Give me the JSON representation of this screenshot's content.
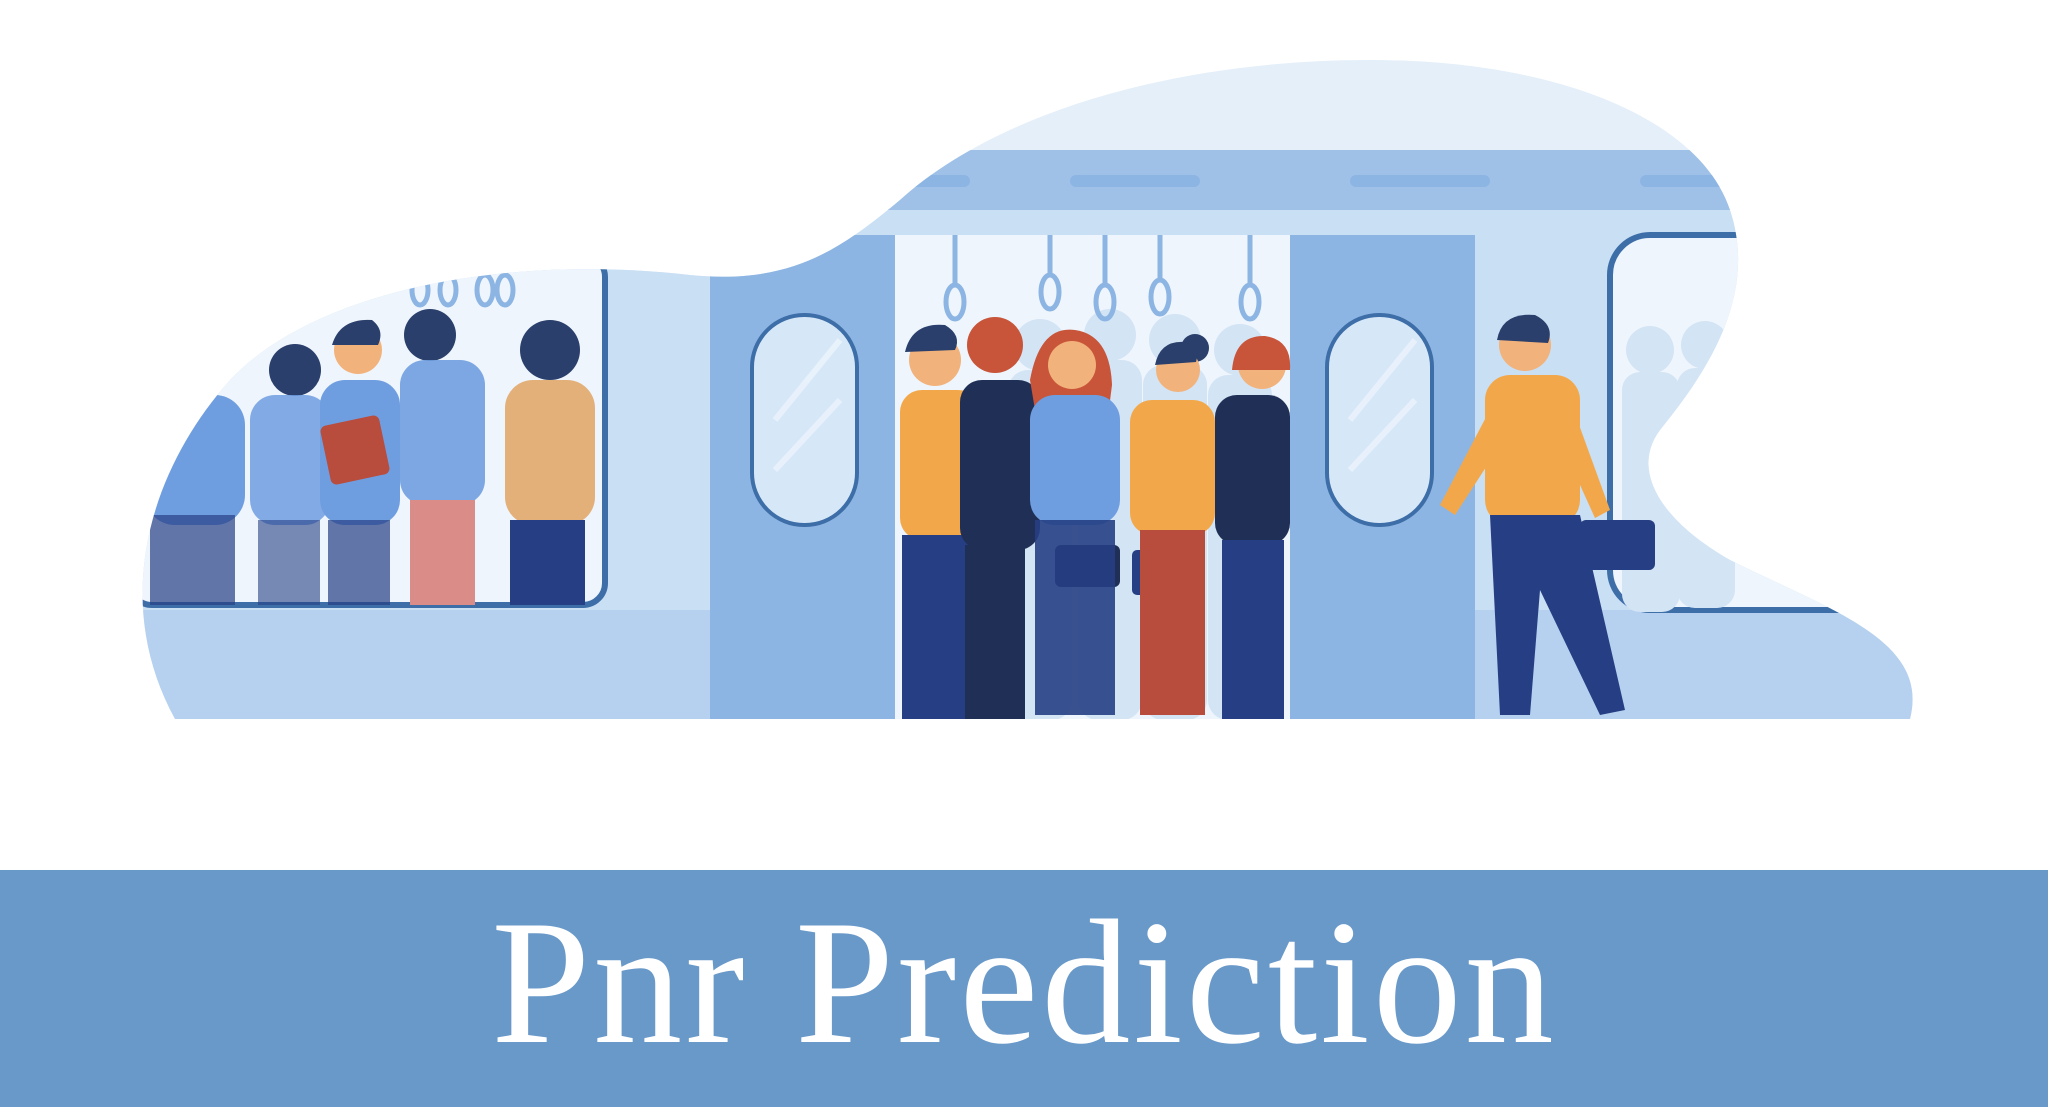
{
  "banner": {
    "title": "Pnr Prediction"
  },
  "illustration": {
    "subject": "crowded-train-carriage",
    "icon": "train-passengers-illustration"
  },
  "colors": {
    "page_background": "#ffffff",
    "banner_background": "#6999c9",
    "banner_text": "#ffffff",
    "sky_blob": "#e4eff9",
    "train_body": "#c9dff4",
    "train_panel": "#9fc1e8",
    "door": "#8db5e3",
    "window_glass": "#d6e7f8",
    "window_frame": "#3d6ea8",
    "interior": "#eef5fc",
    "shirt_orange": "#f2a84a",
    "shirt_blue": "#6f9ee0",
    "navy": "#263f84",
    "dark_navy": "#1f2f55",
    "hair_dark": "#2a3f6b",
    "hair_red": "#c8553a",
    "skin": "#f2b27b",
    "bag_red": "#b84c3d",
    "pants_red": "#b84c3d",
    "pants_pink": "#d98c88",
    "shirt_tan": "#e3b07a"
  }
}
